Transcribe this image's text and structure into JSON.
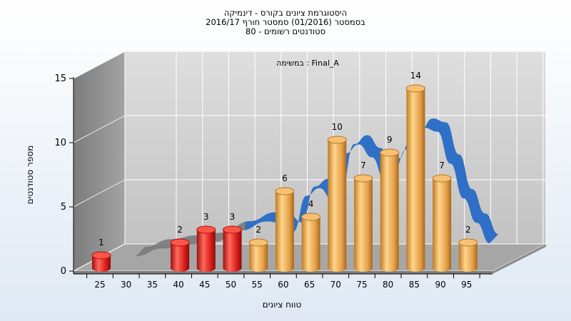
{
  "chart_data": {
    "type": "bar",
    "title_lines": [
      "היסטוגרמת ציונים בקורס - דינמיקה",
      "בסמסטר  (01/2016)  סמסטר חורף 2016/17",
      "סטודנטים רשומים - 80"
    ],
    "annotation": "במשימה : Final_A",
    "xlabel": "טווח ציונים",
    "ylabel": "מספר סטודנטים",
    "categories": [
      "25",
      "30",
      "35",
      "40",
      "45",
      "50",
      "55",
      "60",
      "65",
      "70",
      "75",
      "80",
      "85",
      "90",
      "95"
    ],
    "yticks": [
      "0",
      "5",
      "10",
      "15"
    ],
    "ylim": [
      0,
      15
    ],
    "grid": true,
    "bars": [
      {
        "x": "25",
        "value": 1,
        "label": "1",
        "group": "fail"
      },
      {
        "x": "40",
        "value": 2,
        "label": "2",
        "group": "fail"
      },
      {
        "x": "45",
        "value": 3,
        "label": "3",
        "group": "fail"
      },
      {
        "x": "50",
        "value": 3,
        "label": "3",
        "group": "fail"
      },
      {
        "x": "55",
        "value": 2,
        "label": "2",
        "group": "pass"
      },
      {
        "x": "60",
        "value": 6,
        "label": "6",
        "group": "pass"
      },
      {
        "x": "65",
        "value": 4,
        "label": "4",
        "group": "pass"
      },
      {
        "x": "70",
        "value": 10,
        "label": "10",
        "group": "pass"
      },
      {
        "x": "75",
        "value": 7,
        "label": "7",
        "group": "pass"
      },
      {
        "x": "80",
        "value": 9,
        "label": "9",
        "group": "pass"
      },
      {
        "x": "85",
        "value": 14,
        "label": "14",
        "group": "pass"
      },
      {
        "x": "90",
        "value": 7,
        "label": "7",
        "group": "pass"
      },
      {
        "x": "95",
        "value": 2,
        "label": "2",
        "group": "pass"
      }
    ],
    "trend": {
      "x": [
        30,
        35,
        40,
        45,
        50,
        55,
        57.5,
        60,
        62.5,
        65,
        67.5,
        70,
        72.5,
        75,
        77.5,
        80,
        82.5,
        85,
        87.5,
        90,
        92.5,
        95,
        97.5
      ],
      "y": [
        0.3,
        0.9,
        1.2,
        1.4,
        2.3,
        3,
        2.9,
        2.2,
        5,
        5.6,
        4.7,
        8.3,
        9,
        8,
        6.2,
        7.9,
        9.3,
        10.3,
        10,
        7.5,
        4.8,
        2.9,
        1.3
      ]
    },
    "colors": {
      "fail": "#e0201c",
      "pass": "#e8a34a",
      "trend": "#2f6fc6",
      "trend_low": "#7a7a7a",
      "wall_back": "#c9c9c9",
      "wall_side": "#8c8c8c",
      "floor": "#a8a8a8"
    }
  }
}
